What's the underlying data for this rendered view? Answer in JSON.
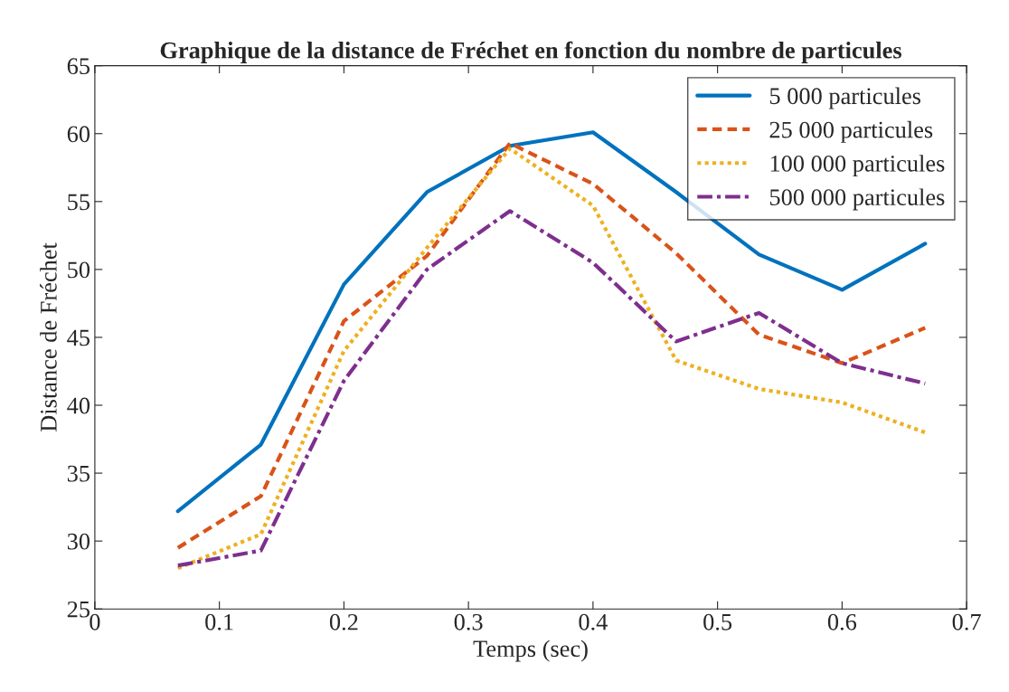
{
  "chart_data": {
    "type": "line",
    "title": "Graphique de la distance de Fréchet en fonction du nombre de particules",
    "xlabel": "Temps (sec)",
    "ylabel": "Distance de Fréchet",
    "x": [
      0.0667,
      0.1333,
      0.2,
      0.2667,
      0.3333,
      0.4,
      0.4667,
      0.5333,
      0.6,
      0.6667
    ],
    "series": [
      {
        "name": "5 000 particules",
        "color": "#0072bd",
        "line_style": "solid",
        "values": [
          32.2,
          37.1,
          48.9,
          55.7,
          59.1,
          60.1,
          55.7,
          51.1,
          48.5,
          51.9
        ]
      },
      {
        "name": "25 000 particules",
        "color": "#d95319",
        "line_style": "dashed",
        "values": [
          29.5,
          33.3,
          46.2,
          51.0,
          59.3,
          56.3,
          51.2,
          45.2,
          43.1,
          45.7
        ]
      },
      {
        "name": "100 000 particules",
        "color": "#edb120",
        "line_style": "dotted",
        "values": [
          28.0,
          30.5,
          44.0,
          51.6,
          58.9,
          54.7,
          43.3,
          41.2,
          40.2,
          38.0
        ]
      },
      {
        "name": "500 000 particules",
        "color": "#7e2f8e",
        "line_style": "dashdot",
        "values": [
          28.2,
          29.3,
          41.8,
          50.0,
          54.3,
          50.5,
          44.7,
          46.8,
          43.1,
          41.6
        ]
      }
    ],
    "xlim": [
      0,
      0.7
    ],
    "xticks": [
      0,
      0.1,
      0.2,
      0.3,
      0.4,
      0.5,
      0.6,
      0.7
    ],
    "ylim": [
      25,
      65
    ],
    "yticks": [
      25,
      30,
      35,
      40,
      45,
      50,
      55,
      60,
      65
    ],
    "grid": false,
    "legend": "top right"
  }
}
